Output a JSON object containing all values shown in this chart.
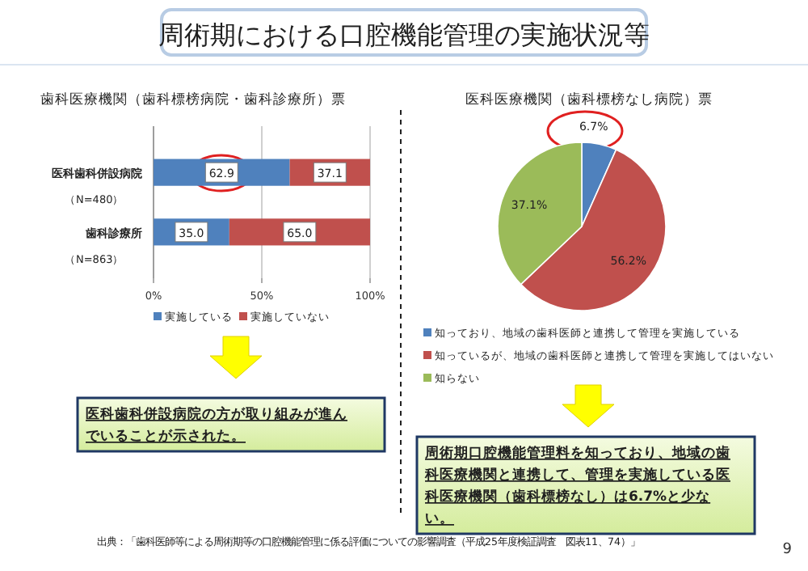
{
  "chart_data": [
    {
      "type": "bar",
      "title": "歯科医療機関（歯科標榜病院・歯科診療所）票",
      "orientation": "horizontal",
      "stacked": true,
      "categories": [
        "医科歯科併設病院（N=480）",
        "歯科診療所（N=863）"
      ],
      "series": [
        {
          "name": "実施している",
          "color": "#4f81bd",
          "values": [
            62.9,
            35.0
          ],
          "value_labels": [
            "62.9",
            "35.0"
          ]
        },
        {
          "name": "実施していない",
          "color": "#c0504d",
          "values": [
            37.1,
            65.0
          ],
          "value_labels": [
            "37.1",
            "65.0"
          ]
        }
      ],
      "xlim": [
        0,
        100
      ],
      "xticks": [
        {
          "value": 0,
          "label": "0%"
        },
        {
          "value": 50,
          "label": "50%"
        },
        {
          "value": 100,
          "label": "100%"
        }
      ],
      "grid": "x",
      "legend": "bottom",
      "annotations": [
        "医科歯科併設病院の方が取り組みが進んでいることが示された。"
      ]
    },
    {
      "type": "pie",
      "title": "医科医療機関（歯科標榜なし病院）票",
      "categories": [
        "知っており、地域の歯科医師と連携して管理を実施している",
        "知っているが、地域の歯科医師と連携して管理を実施してはいない",
        "知らない"
      ],
      "values": [
        6.7,
        56.2,
        37.1
      ],
      "colors": [
        "#4f81bd",
        "#c0504d",
        "#9bbb59"
      ],
      "value_labels": [
        "6.7%",
        "56.2%",
        "37.1%"
      ],
      "legend": "bottom",
      "annotations": [
        "周術期口腔機能管理料を知っており、地域の歯科医療機関と連携して、管理を実施している医科医療機関（歯科標榜なし）は6.7%と少ない。"
      ]
    },
    {
      "type": "other",
      "title": "周術期における口腔機能管理の実施状況等",
      "annotations": [
        "出典：「歯科医師等による周術期等の口腔機能管理に係る評価についての影響調査（平成25年度検証調査　図表11、74）」",
        "9"
      ]
    }
  ]
}
